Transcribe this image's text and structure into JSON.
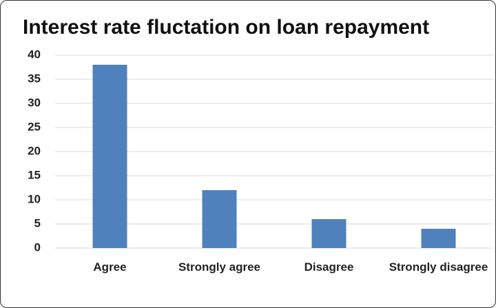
{
  "chart_data": {
    "type": "bar",
    "title": "Interest rate fluctation on loan repayment",
    "categories": [
      "Agree",
      "Strongly agree",
      "Disagree",
      "Strongly disagree"
    ],
    "values": [
      38,
      12,
      6,
      4
    ],
    "color": "#4f81bd",
    "ylim": [
      0,
      40
    ],
    "yticks": [
      0,
      5,
      10,
      15,
      20,
      25,
      30,
      35,
      40
    ],
    "grid": true
  }
}
